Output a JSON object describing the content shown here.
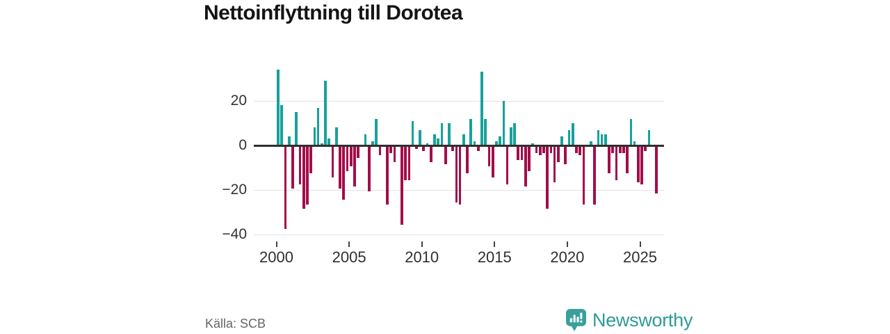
{
  "title": "Nettoinflyttning till Dorotea",
  "source": "Källa: SCB",
  "brand": {
    "name": "Newsworthy",
    "icon": "newsworthy-pin-barchart-icon",
    "color": "#2d9b98",
    "icon_color": "#3aa09c"
  },
  "colors": {
    "positive": "#18a19b",
    "negative": "#a30d4a",
    "zero_line": "#2f2f2f",
    "gridline": "#e3e3e3",
    "axis_text": "#333333",
    "title_text": "#141414",
    "source_text": "#666666"
  },
  "chart_data": {
    "type": "bar",
    "title": "Nettoinflyttning till Dorotea",
    "xlabel": "",
    "ylabel": "",
    "grid": "horizontal",
    "legend": "none",
    "ylim": [
      -44,
      37
    ],
    "yticks": [
      20,
      0,
      -20,
      -40
    ],
    "ytick_labels": [
      "20",
      "0",
      "−20",
      "−40"
    ],
    "xticks": [
      "2000",
      "2005",
      "2010",
      "2015",
      "2020",
      "2025"
    ],
    "xtick_slot_indices": [
      0,
      20,
      40,
      60,
      80,
      100
    ],
    "x": [
      "2000 Q1",
      "2000 Q2",
      "2000 Q3",
      "2000 Q4",
      "2001 Q1",
      "2001 Q2",
      "2001 Q3",
      "2001 Q4",
      "2002 Q1",
      "2002 Q2",
      "2002 Q3",
      "2002 Q4",
      "2003 Q1",
      "2003 Q2",
      "2003 Q3",
      "2003 Q4",
      "2004 Q1",
      "2004 Q2",
      "2004 Q3",
      "2004 Q4",
      "2005 Q1",
      "2005 Q2",
      "2005 Q3",
      "2005 Q4",
      "2006 Q1",
      "2006 Q2",
      "2006 Q3",
      "2006 Q4",
      "2007 Q1",
      "2007 Q2",
      "2007 Q3",
      "2007 Q4",
      "2008 Q1",
      "2008 Q2",
      "2008 Q3",
      "2008 Q4",
      "2009 Q1",
      "2009 Q2",
      "2009 Q3",
      "2009 Q4",
      "2010 Q1",
      "2010 Q2",
      "2010 Q3",
      "2010 Q4",
      "2011 Q1",
      "2011 Q2",
      "2011 Q3",
      "2011 Q4",
      "2012 Q1",
      "2012 Q2",
      "2012 Q3",
      "2012 Q4",
      "2013 Q1",
      "2013 Q2",
      "2013 Q3",
      "2013 Q4",
      "2014 Q1",
      "2014 Q2",
      "2014 Q3",
      "2014 Q4",
      "2015 Q1",
      "2015 Q2",
      "2015 Q3",
      "2015 Q4",
      "2016 Q1",
      "2016 Q2",
      "2016 Q3",
      "2016 Q4",
      "2017 Q1",
      "2017 Q2",
      "2017 Q3",
      "2017 Q4",
      "2018 Q1",
      "2018 Q2",
      "2018 Q3",
      "2018 Q4",
      "2019 Q1",
      "2019 Q2",
      "2019 Q3",
      "2019 Q4",
      "2020 Q1",
      "2020 Q2",
      "2020 Q3",
      "2020 Q4",
      "2021 Q1",
      "2021 Q2",
      "2021 Q3",
      "2021 Q4",
      "2022 Q1",
      "2022 Q2",
      "2022 Q3",
      "2022 Q4",
      "2023 Q1",
      "2023 Q2",
      "2023 Q3",
      "2023 Q4",
      "2024 Q1",
      "2024 Q2",
      "2024 Q3",
      "2024 Q4",
      "2025 Q1",
      "2025 Q2",
      "2025 Q3",
      "2025 Q4",
      "2026 Q1"
    ],
    "values": [
      34,
      18,
      -37,
      4,
      -19,
      15,
      -17,
      -28,
      -26,
      -12,
      8,
      17,
      1,
      29,
      3,
      -14,
      8,
      -19,
      -24,
      -11,
      -9,
      -18,
      -5,
      0,
      5,
      -20,
      2,
      12,
      -4,
      0,
      -26,
      -3,
      -7,
      0,
      -35,
      -15,
      -15,
      11,
      -1,
      7,
      -2,
      1,
      -7,
      5,
      3,
      10,
      -8,
      10,
      -2,
      -25,
      -26,
      5,
      -12,
      12,
      2,
      -2,
      33,
      12,
      -9,
      -14,
      2,
      4,
      20,
      -17,
      8,
      10,
      -6,
      -6,
      -18,
      -11,
      1,
      -3,
      -4,
      -3,
      -28,
      -3,
      -16,
      -7,
      4,
      -8,
      7,
      10,
      -3,
      -4,
      -26,
      0,
      2,
      -26,
      7,
      5,
      5,
      -12,
      -3,
      -15,
      -3,
      -3,
      -12,
      12,
      2,
      -16,
      -17,
      -2,
      7,
      0,
      -21
    ]
  }
}
